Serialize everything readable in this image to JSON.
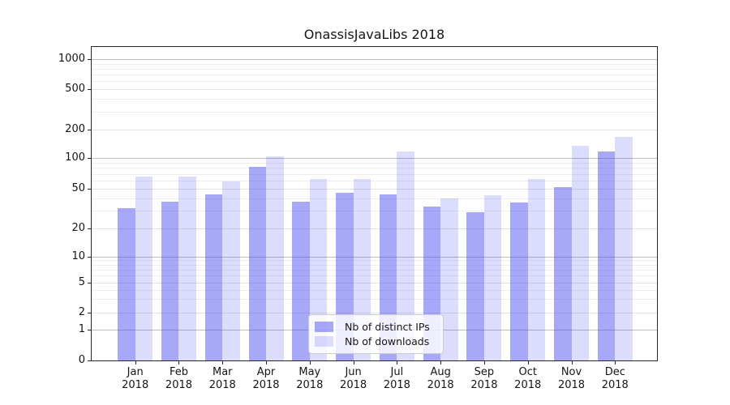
{
  "title": "OnassisJavaLibs 2018",
  "chart_data": {
    "type": "bar",
    "title": "OnassisJavaLibs 2018",
    "categories": [
      "Jan 2018",
      "Feb 2018",
      "Mar 2018",
      "Apr 2018",
      "May 2018",
      "Jun 2018",
      "Jul 2018",
      "Aug 2018",
      "Sep 2018",
      "Oct 2018",
      "Nov 2018",
      "Dec 2018"
    ],
    "series": [
      {
        "name": "Nb of distinct IPs",
        "color": "rgba(70,70,240,0.47)",
        "color_hex_on_white": "#a9a9f7",
        "values": [
          32,
          37,
          44,
          82,
          37,
          45,
          44,
          33,
          29,
          36,
          52,
          117
        ]
      },
      {
        "name": "Nb of downloads",
        "color": "rgba(70,70,240,0.19)",
        "color_hex_on_white": "#dcdcfa",
        "values": [
          66,
          66,
          59,
          105,
          62,
          62,
          117,
          40,
          43,
          62,
          136,
          168
        ]
      }
    ],
    "xlabel": "",
    "ylabel": "",
    "yscale": "symlog",
    "ylim": [
      0,
      1000
    ],
    "y_ticks": [
      0,
      1,
      2,
      5,
      10,
      20,
      50,
      100,
      200,
      500,
      1000
    ],
    "grid": true,
    "legend": {
      "position": "lower center",
      "labels": [
        "Nb of distinct IPs",
        "Nb of downloads"
      ]
    },
    "colors": {
      "grid_major": "#bdbdbd",
      "grid_labeled_minor": "#e3e3e3",
      "grid_minor": "#eeeeee",
      "spine": "#262626",
      "text": "#151515"
    }
  }
}
